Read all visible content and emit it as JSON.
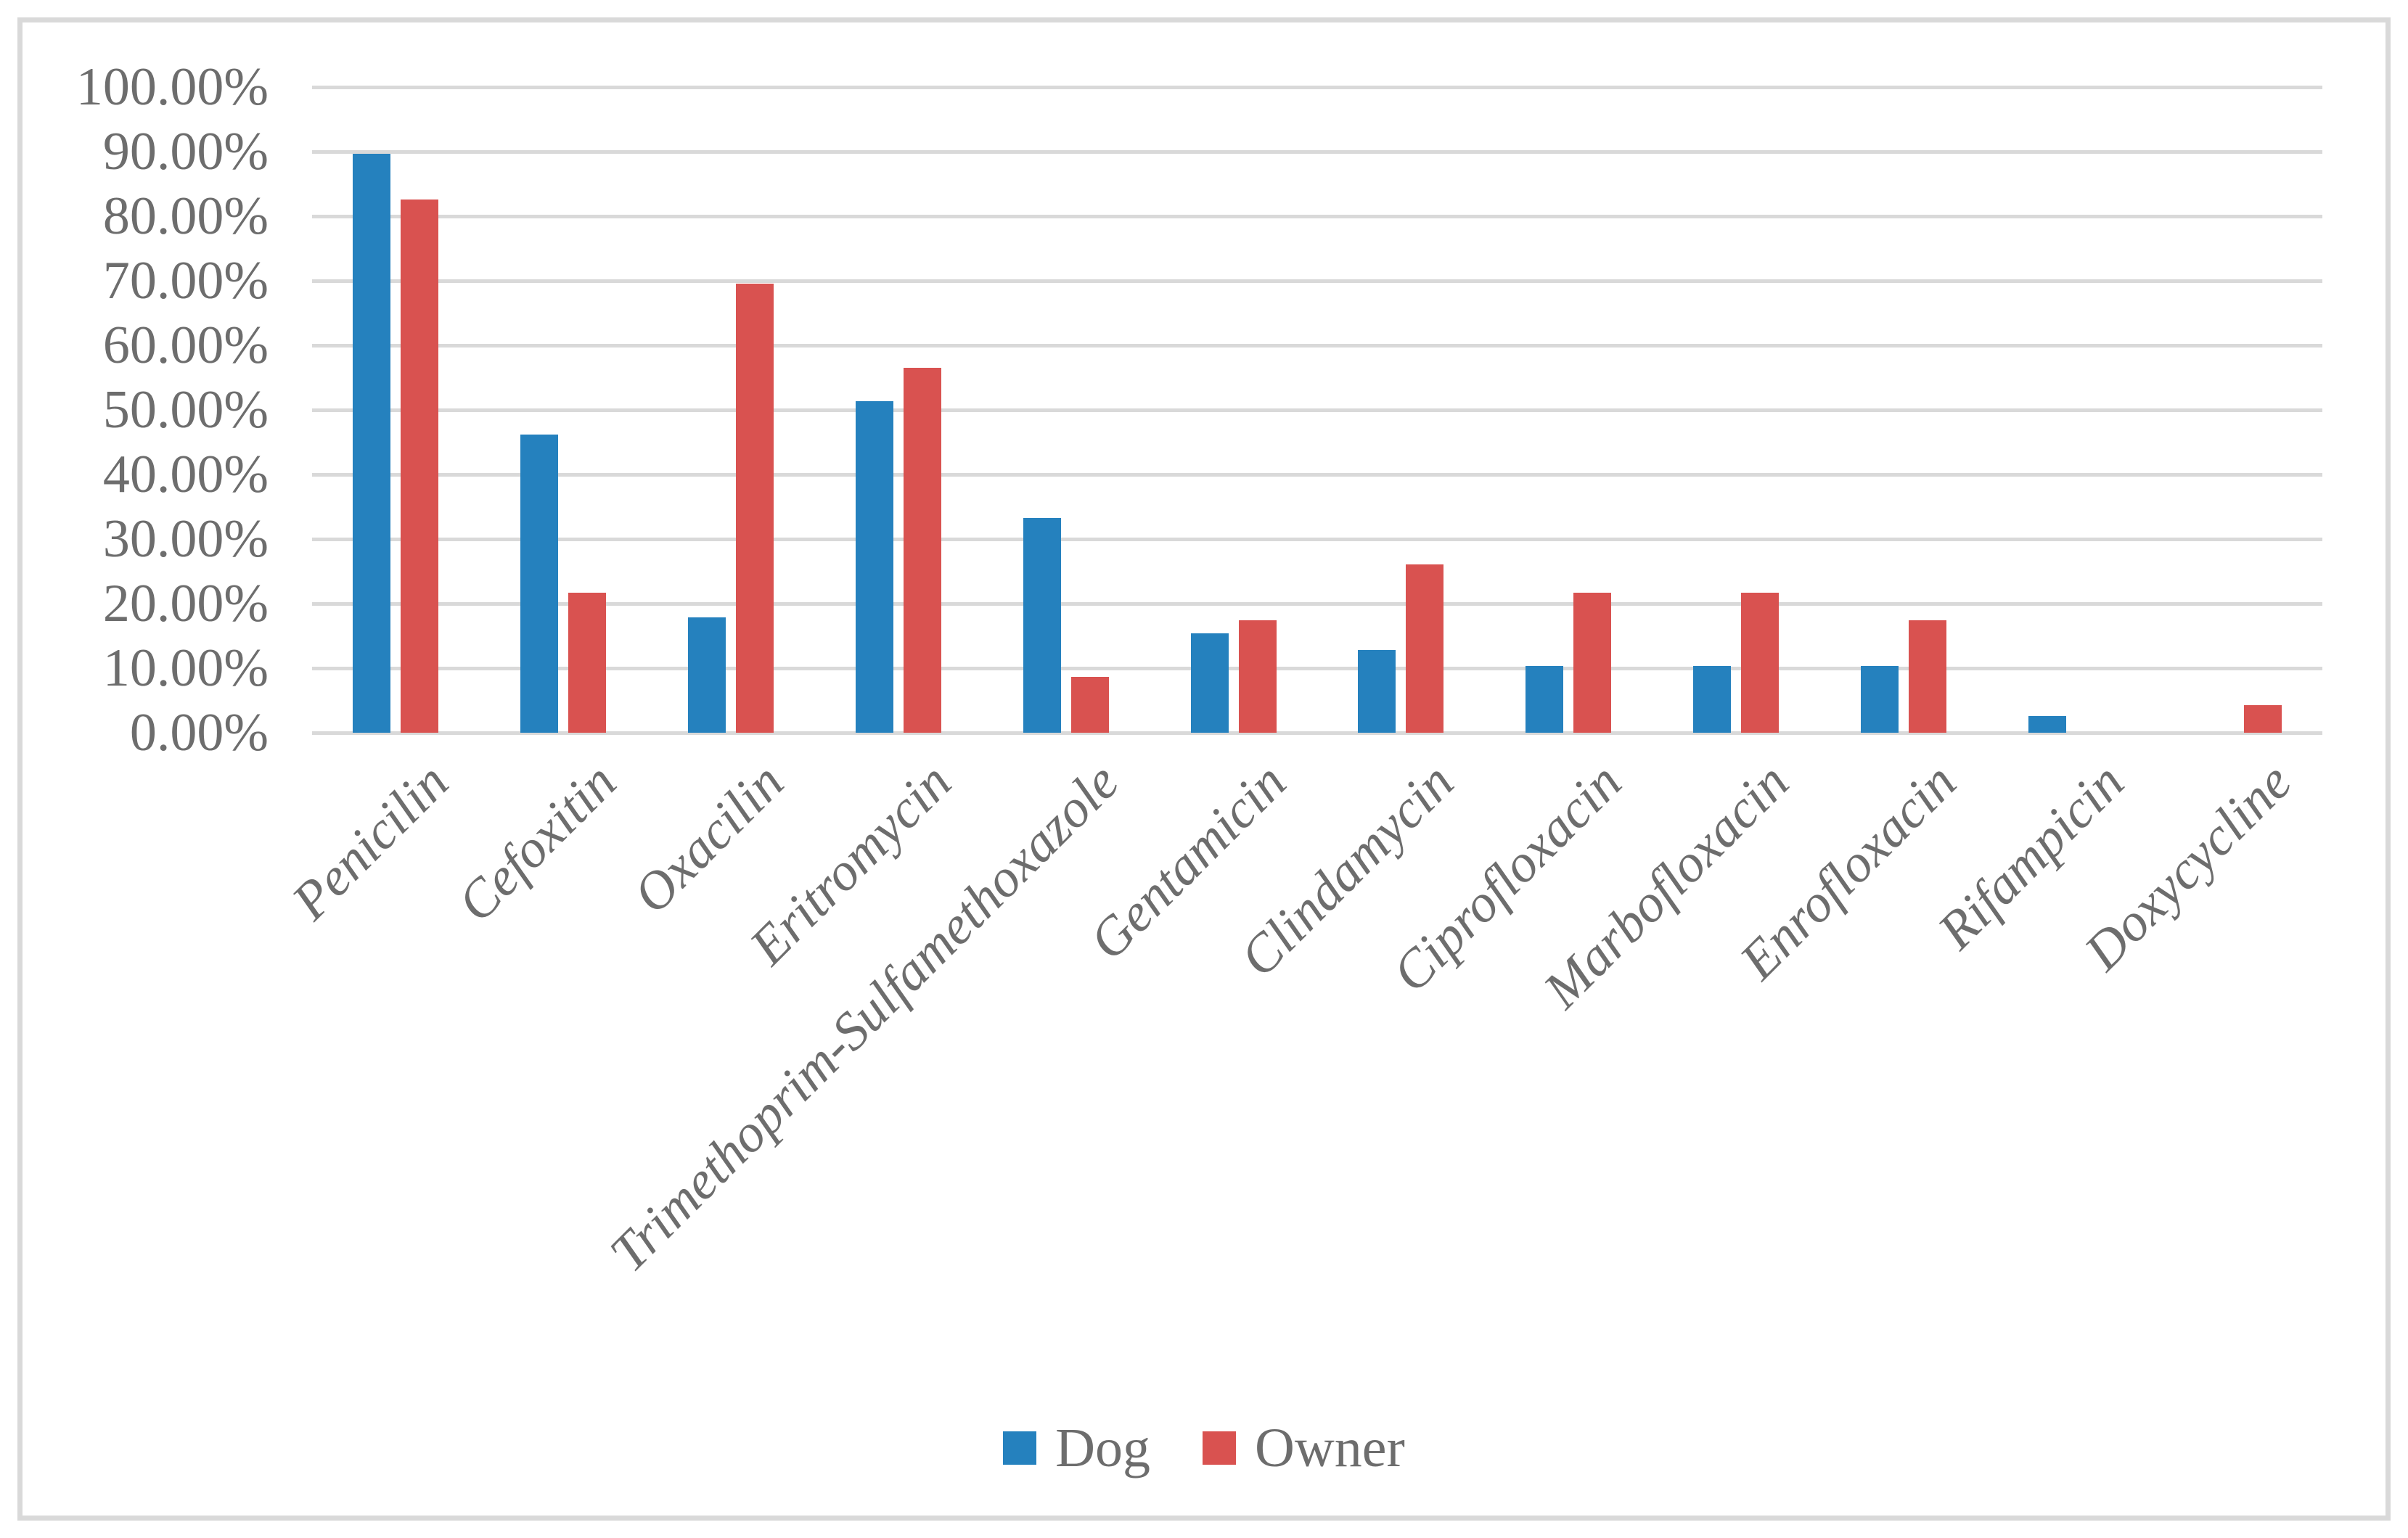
{
  "chart_data": {
    "type": "bar",
    "title": "",
    "categories": [
      "Penicilin",
      "Cefoxitin",
      "Oxacilin",
      "Eritromycin",
      "Trimethoprim-Sulfamethoxazole",
      "Gentamicin",
      "Clindamycin",
      "Ciprofloxacin",
      "Marbofloxacin",
      "Enrofloxacin",
      "Rifampicin",
      "Doxycycline"
    ],
    "series": [
      {
        "name": "Dog",
        "color": "#2581be",
        "values": [
          89.7,
          46.2,
          17.9,
          51.3,
          33.3,
          15.4,
          12.8,
          10.3,
          10.3,
          10.3,
          2.6,
          0
        ]
      },
      {
        "name": "Owner",
        "color": "#d95250",
        "values": [
          82.6,
          21.7,
          69.6,
          56.5,
          8.7,
          17.4,
          26.1,
          21.7,
          21.7,
          17.4,
          0,
          4.3
        ]
      }
    ],
    "y_axis": {
      "min": 0,
      "max": 100,
      "step": 10,
      "unit": "percent",
      "tick_labels": [
        "0.00%",
        "10.00%",
        "20.00%",
        "30.00%",
        "40.00%",
        "50.00%",
        "60.00%",
        "70.00%",
        "80.00%",
        "90.00%",
        "100.00%"
      ]
    },
    "grid": true,
    "legend_position": "bottom",
    "gridline_color": "#d9d9d9",
    "text_color": "#6d6d6d"
  }
}
